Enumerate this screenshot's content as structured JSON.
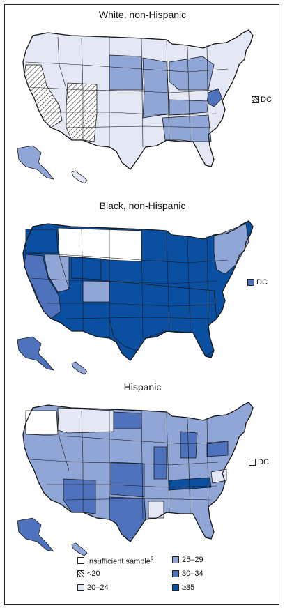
{
  "colors": {
    "insufficient": "#ffffff",
    "lt20": "hatch",
    "r20_24": "#e4e8f4",
    "r25_29": "#8fa6d6",
    "r30_34": "#4f72bd",
    "ge35": "#0b4fa0",
    "border": "#1a1a1a"
  },
  "panels": [
    {
      "title": "White, non-Hispanic",
      "dc_label": "DC",
      "dc_class": "lt20",
      "base_class": "r20_24",
      "regions": [
        {
          "name": "california-nevada-west",
          "class": "lt20"
        },
        {
          "name": "southwest-four-corners",
          "class": "lt20"
        },
        {
          "name": "plains-central",
          "class": "r25_29"
        },
        {
          "name": "midwest-south-central",
          "class": "r25_29"
        },
        {
          "name": "great-lakes",
          "class": "r25_29"
        },
        {
          "name": "west-virginia",
          "class": "r30_34"
        },
        {
          "name": "kentucky-tennessee",
          "class": "r25_29"
        },
        {
          "name": "deep-south",
          "class": "r25_29"
        },
        {
          "name": "alaska",
          "class": "r25_29"
        },
        {
          "name": "hawaii",
          "class": "r20_24"
        }
      ]
    },
    {
      "title": "Black, non-Hispanic",
      "dc_label": "DC",
      "dc_class": "r30_34",
      "base_class": "ge35",
      "regions": [
        {
          "name": "pacific-northwest",
          "class": "ge35"
        },
        {
          "name": "california",
          "class": "r30_34"
        },
        {
          "name": "great-basin",
          "class": "r25_29"
        },
        {
          "name": "northern-plains-mountain",
          "class": "insufficient"
        },
        {
          "name": "wyoming",
          "class": "ge35"
        },
        {
          "name": "colorado",
          "class": "r25_29"
        },
        {
          "name": "south-and-southeast",
          "class": "ge35"
        },
        {
          "name": "northeast",
          "class": "r25_29"
        },
        {
          "name": "alaska",
          "class": "r30_34"
        },
        {
          "name": "hawaii",
          "class": "r25_29"
        }
      ]
    },
    {
      "title": "Hispanic",
      "dc_label": "DC",
      "dc_class": "insufficient",
      "base_class": "r25_29",
      "regions": [
        {
          "name": "pacific-northwest",
          "class": "insufficient"
        },
        {
          "name": "montana-idaho",
          "class": "r20_24"
        },
        {
          "name": "north-dakota",
          "class": "r30_34"
        },
        {
          "name": "kansas-oklahoma",
          "class": "r30_34"
        },
        {
          "name": "texas-arizona",
          "class": "r30_34"
        },
        {
          "name": "tennessee",
          "class": "ge35"
        },
        {
          "name": "illinois-michigan",
          "class": "r30_34"
        },
        {
          "name": "louisiana-virginia",
          "class": "r20_24"
        },
        {
          "name": "pennsylvania",
          "class": "r30_34"
        },
        {
          "name": "alaska",
          "class": "r30_34"
        },
        {
          "name": "hawaii",
          "class": "r25_29"
        }
      ]
    }
  ],
  "legend": {
    "items": [
      {
        "label": "Insufficient sample",
        "note": "§",
        "class": "insufficient"
      },
      {
        "label": "<20",
        "note": "",
        "class": "lt20"
      },
      {
        "label": "20–24",
        "note": "",
        "class": "r20_24"
      },
      {
        "label": "25–29",
        "note": "",
        "class": "r25_29"
      },
      {
        "label": "30–34",
        "note": "",
        "class": "r30_34"
      },
      {
        "label": "≥35",
        "note": "",
        "class": "ge35"
      }
    ]
  }
}
